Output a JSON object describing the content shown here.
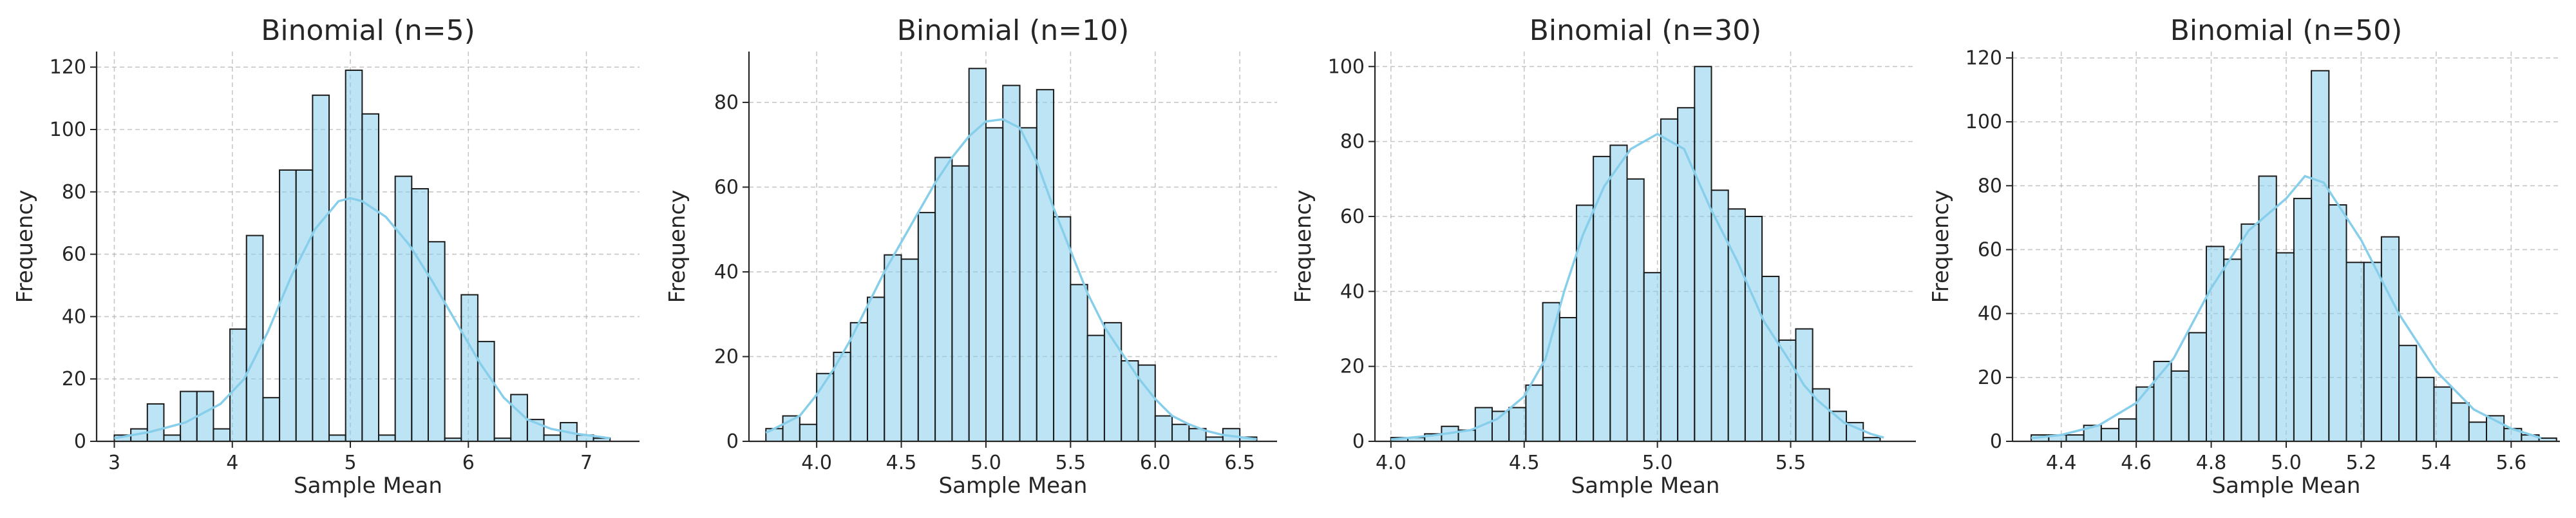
{
  "chart_data": [
    {
      "type": "bar",
      "title": "Binomial (n=5)",
      "xlabel": "Sample Mean",
      "ylabel": "Frequency",
      "xlim": [
        2.85,
        7.45
      ],
      "ylim": [
        0,
        125
      ],
      "xticks": [
        3,
        4,
        5,
        6,
        7
      ],
      "yticks": [
        0,
        20,
        40,
        60,
        80,
        100,
        120
      ],
      "bin_start": 3.0,
      "bin_width": 0.14,
      "values": [
        2,
        4,
        12,
        2,
        16,
        16,
        4,
        36,
        66,
        14,
        87,
        87,
        111,
        2,
        119,
        105,
        2,
        85,
        81,
        64,
        1,
        47,
        32,
        1,
        15,
        7,
        2,
        6,
        2,
        1
      ],
      "kde": [
        [
          3.0,
          1
        ],
        [
          3.3,
          3
        ],
        [
          3.6,
          6
        ],
        [
          3.9,
          12
        ],
        [
          4.1,
          20
        ],
        [
          4.3,
          35
        ],
        [
          4.5,
          53
        ],
        [
          4.7,
          68
        ],
        [
          4.9,
          77
        ],
        [
          5.0,
          78
        ],
        [
          5.1,
          77
        ],
        [
          5.3,
          72
        ],
        [
          5.5,
          63
        ],
        [
          5.7,
          51
        ],
        [
          5.9,
          38
        ],
        [
          6.1,
          25
        ],
        [
          6.3,
          14
        ],
        [
          6.5,
          7
        ],
        [
          6.7,
          4
        ],
        [
          6.9,
          2.5
        ],
        [
          7.1,
          1.5
        ],
        [
          7.2,
          1
        ]
      ]
    },
    {
      "type": "bar",
      "title": "Binomial (n=10)",
      "xlabel": "Sample Mean",
      "ylabel": "Frequency",
      "xlim": [
        3.6,
        6.72
      ],
      "ylim": [
        0,
        92
      ],
      "xticks": [
        4.0,
        4.5,
        5.0,
        5.5,
        6.0,
        6.5
      ],
      "yticks": [
        0,
        20,
        40,
        60,
        80
      ],
      "bin_start": 3.7,
      "bin_width": 0.1,
      "values": [
        3,
        6,
        4,
        16,
        21,
        28,
        34,
        44,
        43,
        54,
        67,
        65,
        88,
        74,
        84,
        74,
        83,
        53,
        37,
        25,
        28,
        19,
        18,
        6,
        4,
        3,
        1,
        3,
        1
      ],
      "kde": [
        [
          3.7,
          2
        ],
        [
          3.8,
          4
        ],
        [
          3.9,
          6
        ],
        [
          4.0,
          11
        ],
        [
          4.1,
          17
        ],
        [
          4.2,
          24
        ],
        [
          4.3,
          32
        ],
        [
          4.4,
          40
        ],
        [
          4.5,
          47
        ],
        [
          4.6,
          54
        ],
        [
          4.7,
          61
        ],
        [
          4.8,
          67
        ],
        [
          4.9,
          72
        ],
        [
          5.0,
          75.5
        ],
        [
          5.1,
          76
        ],
        [
          5.2,
          74
        ],
        [
          5.3,
          66
        ],
        [
          5.4,
          55
        ],
        [
          5.5,
          45
        ],
        [
          5.6,
          35
        ],
        [
          5.7,
          27
        ],
        [
          5.8,
          21
        ],
        [
          5.9,
          15
        ],
        [
          6.0,
          10
        ],
        [
          6.1,
          6
        ],
        [
          6.2,
          4
        ],
        [
          6.3,
          2.5
        ],
        [
          6.4,
          1.5
        ],
        [
          6.5,
          1
        ],
        [
          6.6,
          0.5
        ]
      ]
    },
    {
      "type": "bar",
      "title": "Binomial (n=30)",
      "xlabel": "Sample Mean",
      "ylabel": "Frequency",
      "xlim": [
        3.94,
        5.97
      ],
      "ylim": [
        0,
        104
      ],
      "xticks": [
        4.0,
        4.5,
        5.0,
        5.5
      ],
      "yticks": [
        0,
        20,
        40,
        60,
        80,
        100
      ],
      "bin_start": 4.0,
      "bin_width": 0.0633,
      "values": [
        1,
        1,
        2,
        4,
        3,
        9,
        8,
        9,
        15,
        37,
        33,
        63,
        76,
        79,
        70,
        45,
        86,
        89,
        100,
        67,
        62,
        60,
        44,
        27,
        30,
        14,
        8,
        5,
        1
      ],
      "kde": [
        [
          4.0,
          0.5
        ],
        [
          4.15,
          1.5
        ],
        [
          4.3,
          3
        ],
        [
          4.4,
          6
        ],
        [
          4.5,
          12
        ],
        [
          4.58,
          22
        ],
        [
          4.65,
          40
        ],
        [
          4.72,
          55
        ],
        [
          4.8,
          68
        ],
        [
          4.9,
          78
        ],
        [
          5.0,
          82
        ],
        [
          5.1,
          78
        ],
        [
          5.2,
          62
        ],
        [
          5.3,
          48
        ],
        [
          5.4,
          32
        ],
        [
          5.5,
          21
        ],
        [
          5.55,
          15
        ],
        [
          5.6,
          11
        ],
        [
          5.7,
          5
        ],
        [
          5.8,
          2
        ],
        [
          5.85,
          1
        ]
      ]
    },
    {
      "type": "bar",
      "title": "Binomial (n=50)",
      "xlabel": "Sample Mean",
      "ylabel": "Frequency",
      "xlim": [
        4.27,
        5.73
      ],
      "ylim": [
        0,
        122
      ],
      "xticks": [
        4.4,
        4.6,
        4.8,
        5.0,
        5.2,
        5.4,
        5.6
      ],
      "yticks": [
        0,
        20,
        40,
        60,
        80,
        100,
        120
      ],
      "bin_start": 4.32,
      "bin_width": 0.0467,
      "values": [
        2,
        2,
        2,
        5,
        4,
        7,
        17,
        25,
        22,
        34,
        61,
        57,
        68,
        83,
        59,
        76,
        116,
        74,
        56,
        56,
        64,
        30,
        20,
        17,
        12,
        6,
        8,
        4,
        2,
        1
      ],
      "kde": [
        [
          4.32,
          1
        ],
        [
          4.4,
          2
        ],
        [
          4.5,
          5
        ],
        [
          4.6,
          12
        ],
        [
          4.7,
          26
        ],
        [
          4.8,
          48
        ],
        [
          4.9,
          66
        ],
        [
          5.0,
          76
        ],
        [
          5.05,
          83
        ],
        [
          5.1,
          81
        ],
        [
          5.2,
          63
        ],
        [
          5.3,
          40
        ],
        [
          5.4,
          22
        ],
        [
          5.5,
          10
        ],
        [
          5.6,
          4
        ],
        [
          5.68,
          1
        ]
      ]
    }
  ]
}
